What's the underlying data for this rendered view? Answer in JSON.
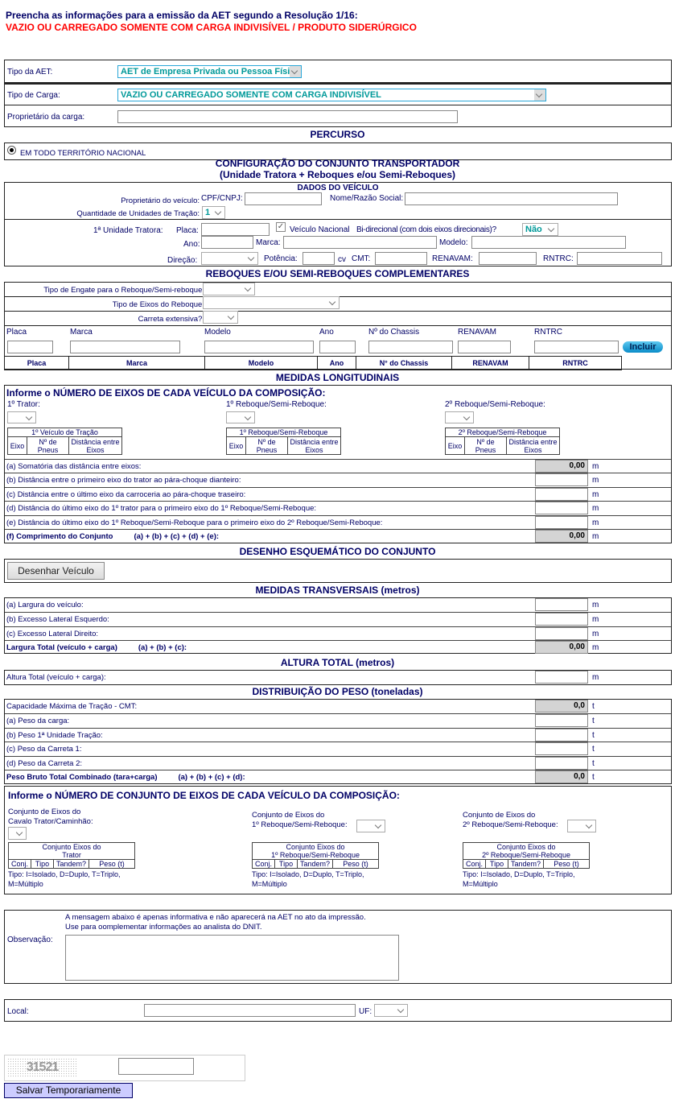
{
  "header": {
    "title": "Preencha as informações para a emissão da AET segundo a Resolução 1/16:",
    "subtitle": "VAZIO OU CARREGADO SOMENTE COM CARGA INDIVISÍVEL / PRODUTO SIDERÚRGICO"
  },
  "general": {
    "tipo_aet_label": "Tipo da AET:",
    "tipo_aet_value": "AET de Empresa Privada ou Pessoa Física",
    "tipo_carga_label": "Tipo de Carga:",
    "tipo_carga_value": "VAZIO OU CARREGADO SOMENTE COM CARGA INDIVISÍVEL",
    "proprietario_label": "Proprietário da carga:",
    "proprietario_value": ""
  },
  "percurso": {
    "title": "PERCURSO",
    "option": "EM TODO TERRITÓRIO NACIONAL",
    "selected": true
  },
  "config": {
    "title": "CONFIGURAÇÃO DO CONJUNTO TRANSPORTADOR",
    "subtitle": "(Unidade Tratora + Reboques e/ou Semi-Reboques)",
    "dados_title": "DADOS DO VEÍCULO",
    "proprietario_label": "Proprietário do veículo:",
    "cpf_label": "CPF/CNPJ:",
    "nome_label": "Nome/Razão Social:",
    "qtd_label": "Quantidade de Unidades de Tração:",
    "qtd_value": "1",
    "unidade_label": "1ª Unidade Tratora:",
    "placa_label": "Placa:",
    "nacional_label": "Veículo Nacional",
    "nacional_checked": true,
    "bidirecional_label": "Bi-direcional (com dois eixos direcionais)?",
    "bidirecional_value": "Não",
    "ano_label": "Ano:",
    "marca_label": "Marca:",
    "modelo_label": "Modelo:",
    "direcao_label": "Direção:",
    "potencia_label": "Potência:",
    "cv_label": "cv",
    "cmt_label": "CMT:",
    "renavam_label": "RENAVAM:",
    "rntrc_label": "RNTRC:"
  },
  "reboques": {
    "title": "REBOQUES E/OU SEMI-REBOQUES COMPLEMENTARES",
    "engate_label": "Tipo de Engate para o Reboque/Semi-reboque:",
    "eixos_label": "Tipo de Eixos do Reboque:",
    "extensiva_label": "Carreta extensiva?:",
    "fields": [
      "Placa",
      "Marca",
      "Modelo",
      "Ano",
      "Nº do Chassis",
      "RENAVAM",
      "RNTRC"
    ],
    "incluir_label": "Incluir",
    "columns": [
      "Placa",
      "Marca",
      "Modelo",
      "Ano",
      "N° do Chassis",
      "RENAVAM",
      "RNTRC"
    ]
  },
  "longitudinais": {
    "title": "MEDIDAS LONGITUDINAIS",
    "instr": "Informe o NÚMERO DE EIXOS DE CADA VEÍCULO DA COMPOSIÇÃO:",
    "vehicles": [
      {
        "label": "1º Trator:",
        "table_title": "1º Veículo de Tração",
        "cols": [
          "Eixo",
          "Nº de Pneus",
          "Distância entre Eixos"
        ]
      },
      {
        "label": "1º Reboque/Semi-Reboque:",
        "table_title": "1º Reboque/Semi-Reboque",
        "cols": [
          "Eixo",
          "Nº de Pneus",
          "Distância entre Eixos"
        ]
      },
      {
        "label": "2º Reboque/Semi-Reboque:",
        "table_title": "2º Reboque/Semi-Reboque",
        "cols": [
          "Eixo",
          "Nº de Pneus",
          "Distância entre Eixos"
        ]
      }
    ],
    "rows": [
      {
        "label": "(a) Somatória das distância entre eixos:",
        "value": "0,00",
        "unit": "m"
      },
      {
        "label": "(b) Distância entre o primeiro eixo do trator ao pára-choque dianteiro:",
        "value": "",
        "unit": "m"
      },
      {
        "label": "(c) Distância entre o último eixo da carroceria ao pára-choque traseiro:",
        "value": "",
        "unit": "m"
      },
      {
        "label": "(d) Distância do último eixo do 1º trator para o primeiro eixo do 1º Reboque/Semi-Reboque:",
        "value": "",
        "unit": "m"
      },
      {
        "label": "(e) Distância do último eixo do 1º Reboque/Semi-Reboque para o primeiro eixo do 2º Reboque/Semi-Reboque:",
        "value": "",
        "unit": "m"
      },
      {
        "label": "(f) Comprimento do Conjunto",
        "formula": "(a) + (b) + (c) + (d) + (e):",
        "value": "0,00",
        "unit": "m"
      }
    ]
  },
  "desenho": {
    "title": "DESENHO ESQUEMÁTICO DO CONJUNTO",
    "button": "Desenhar Veículo"
  },
  "transversais": {
    "title": "MEDIDAS TRANSVERSAIS (metros)",
    "rows": [
      {
        "label": "(a) Largura do veículo:",
        "value": "",
        "unit": "m"
      },
      {
        "label": "(b) Excesso Lateral Esquerdo:",
        "value": "",
        "unit": "m"
      },
      {
        "label": "(c) Excesso Lateral Direito:",
        "value": "",
        "unit": "m"
      },
      {
        "label": "Largura Total (veículo + carga)",
        "formula": "(a) + (b) + (c):",
        "value": "0,00",
        "unit": "m"
      }
    ]
  },
  "altura": {
    "title": "ALTURA TOTAL (metros)",
    "label": "Altura Total (veículo + carga):",
    "value": "",
    "unit": "m"
  },
  "peso": {
    "title": "DISTRIBUIÇÃO DO PESO (toneladas)",
    "rows": [
      {
        "label": "Capacidade Máxima de Tração - CMT:",
        "value": "0,0",
        "unit": "t"
      },
      {
        "label": "(a) Peso da carga:",
        "value": "",
        "unit": "t"
      },
      {
        "label": "(b) Peso 1ª Unidade Tração:",
        "value": "",
        "unit": "t"
      },
      {
        "label": "(c) Peso da Carreta 1:",
        "value": "",
        "unit": "t"
      },
      {
        "label": "(d) Peso da Carreta 2:",
        "value": "",
        "unit": "t"
      },
      {
        "label": "Peso Bruto Total Combinado (tara+carga)",
        "formula": "(a) + (b) + (c) + (d):",
        "value": "0,0",
        "unit": "t"
      }
    ]
  },
  "conjuntos": {
    "instr": "Informe o NÚMERO DE CONJUNTO DE EIXOS DE CADA VEÍCULO DA COMPOSIÇÃO:",
    "groups": [
      {
        "label1": "Conjunto de Eixos do",
        "label2": "Cavalo Trator/Caminhão:",
        "t1": "Conjunto Eixos do",
        "t2": "Trator"
      },
      {
        "label1": "Conjunto de Eixos do",
        "label2": "1º Reboque/Semi-Reboque:",
        "t1": "Conjunto Eixos do",
        "t2": "1º Reboque/Semi-Reboque"
      },
      {
        "label1": "Conjunto de Eixos do",
        "label2": "2º Reboque/Semi-Reboque:",
        "t1": "Conjunto Eixos do",
        "t2": "2º Reboque/Semi-Reboque"
      }
    ],
    "cols": [
      "Conj.",
      "Tipo",
      "Tandem?",
      "Peso (t)"
    ],
    "legend1": "Tipo: I=Isolado, D=Duplo, T=Triplo,",
    "legend2": "M=Múltiplo"
  },
  "obs": {
    "msg1": "A mensagem abaixo é apenas informativa e não aparecerá na AET no ato da impressão.",
    "msg2": "Use para oomplementar informações ao analista do DNIT.",
    "label": "Observação:",
    "value": ""
  },
  "local": {
    "label": "Local:",
    "uf_label": "UF:"
  },
  "captcha": {
    "code": "31521",
    "value": ""
  },
  "save_button": "Salvar Temporariamente",
  "colors": {
    "text": "#000066",
    "alert": "#ff0000",
    "select_text": "#009999",
    "button_bg": "#ccccff"
  }
}
